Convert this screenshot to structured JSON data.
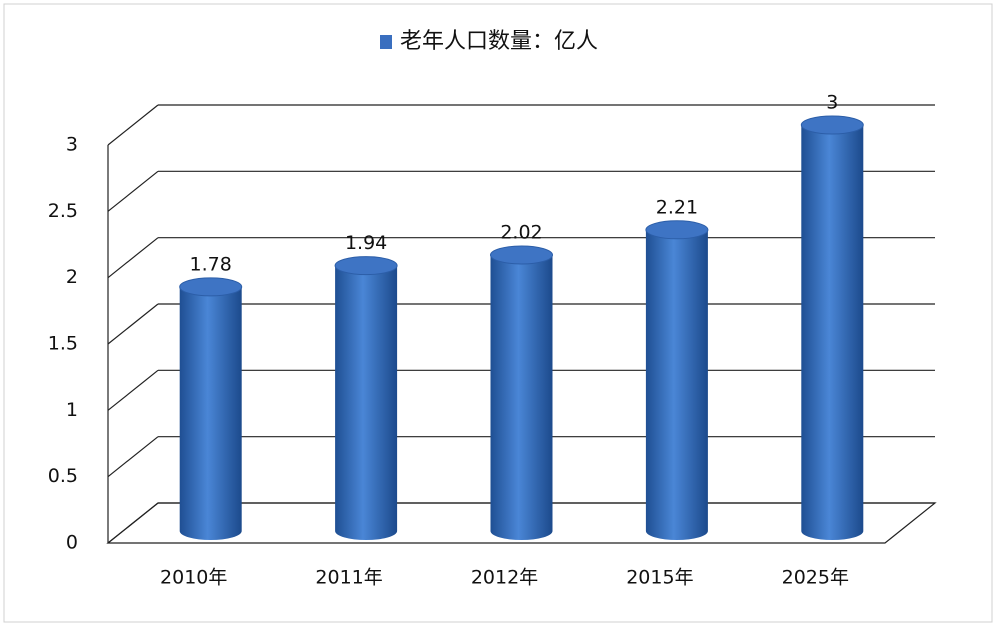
{
  "chart_data": {
    "type": "bar3d",
    "categories": [
      "2010年",
      "2011年",
      "2012年",
      "2015年",
      "2025年"
    ],
    "series": [
      {
        "name": "老年人口数量：亿人",
        "color": "#3a6fbf",
        "values": [
          1.78,
          1.94,
          2.02,
          2.21,
          3
        ]
      }
    ],
    "ylim": [
      0,
      3
    ],
    "yticks": [
      0,
      0.5,
      1,
      1.5,
      2,
      2.5,
      3
    ],
    "grid": true,
    "legend": "top"
  }
}
